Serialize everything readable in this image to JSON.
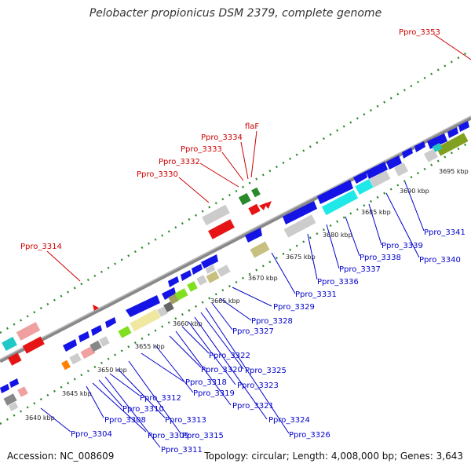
{
  "title": "Pelobacter propionicus DSM 2379, complete genome",
  "footer": {
    "accession": "Accession: NC_008609",
    "summary": "Topology: circular; Length: 4,008,000 bp; Genes: 3,643"
  },
  "scale_labels": [
    "3640 kbp",
    "3645 kbp",
    "3650 kbp",
    "3655 kbp",
    "3660 kbp",
    "3665 kbp",
    "3670 kbp",
    "3675 kbp",
    "3680 kbp",
    "3685 kbp",
    "3690 kbp",
    "3695 kbp"
  ],
  "top_labels": [
    "Ppro_3353",
    "flaF",
    "Ppro_3334",
    "Ppro_3333",
    "Ppro_3332",
    "Ppro_3330",
    "Ppro_3314"
  ],
  "bottom_labels": [
    "Ppro_3304",
    "Ppro_3308",
    "Ppro_3309",
    "Ppro_3310",
    "Ppro_3311",
    "Ppro_3312",
    "Ppro_3313",
    "Ppro_3315",
    "Ppro_3318",
    "Ppro_3319",
    "Ppro_3320",
    "Ppro_3321",
    "Ppro_3322",
    "Ppro_3323",
    "Ppro_3324",
    "Ppro_3325",
    "Ppro_3326",
    "Ppro_3327",
    "Ppro_3328",
    "Ppro_3329",
    "Ppro_3331",
    "Ppro_3336",
    "Ppro_3337",
    "Ppro_3338",
    "Ppro_3339",
    "Ppro_3340",
    "Ppro_3341"
  ],
  "colors": {
    "backbone": "#888888",
    "forward_gene": "#1414e6",
    "rna_gene": "#e61414",
    "label_top": "#cc0000",
    "label_bottom": "#0000cc",
    "dots": "#2a8a2a"
  }
}
